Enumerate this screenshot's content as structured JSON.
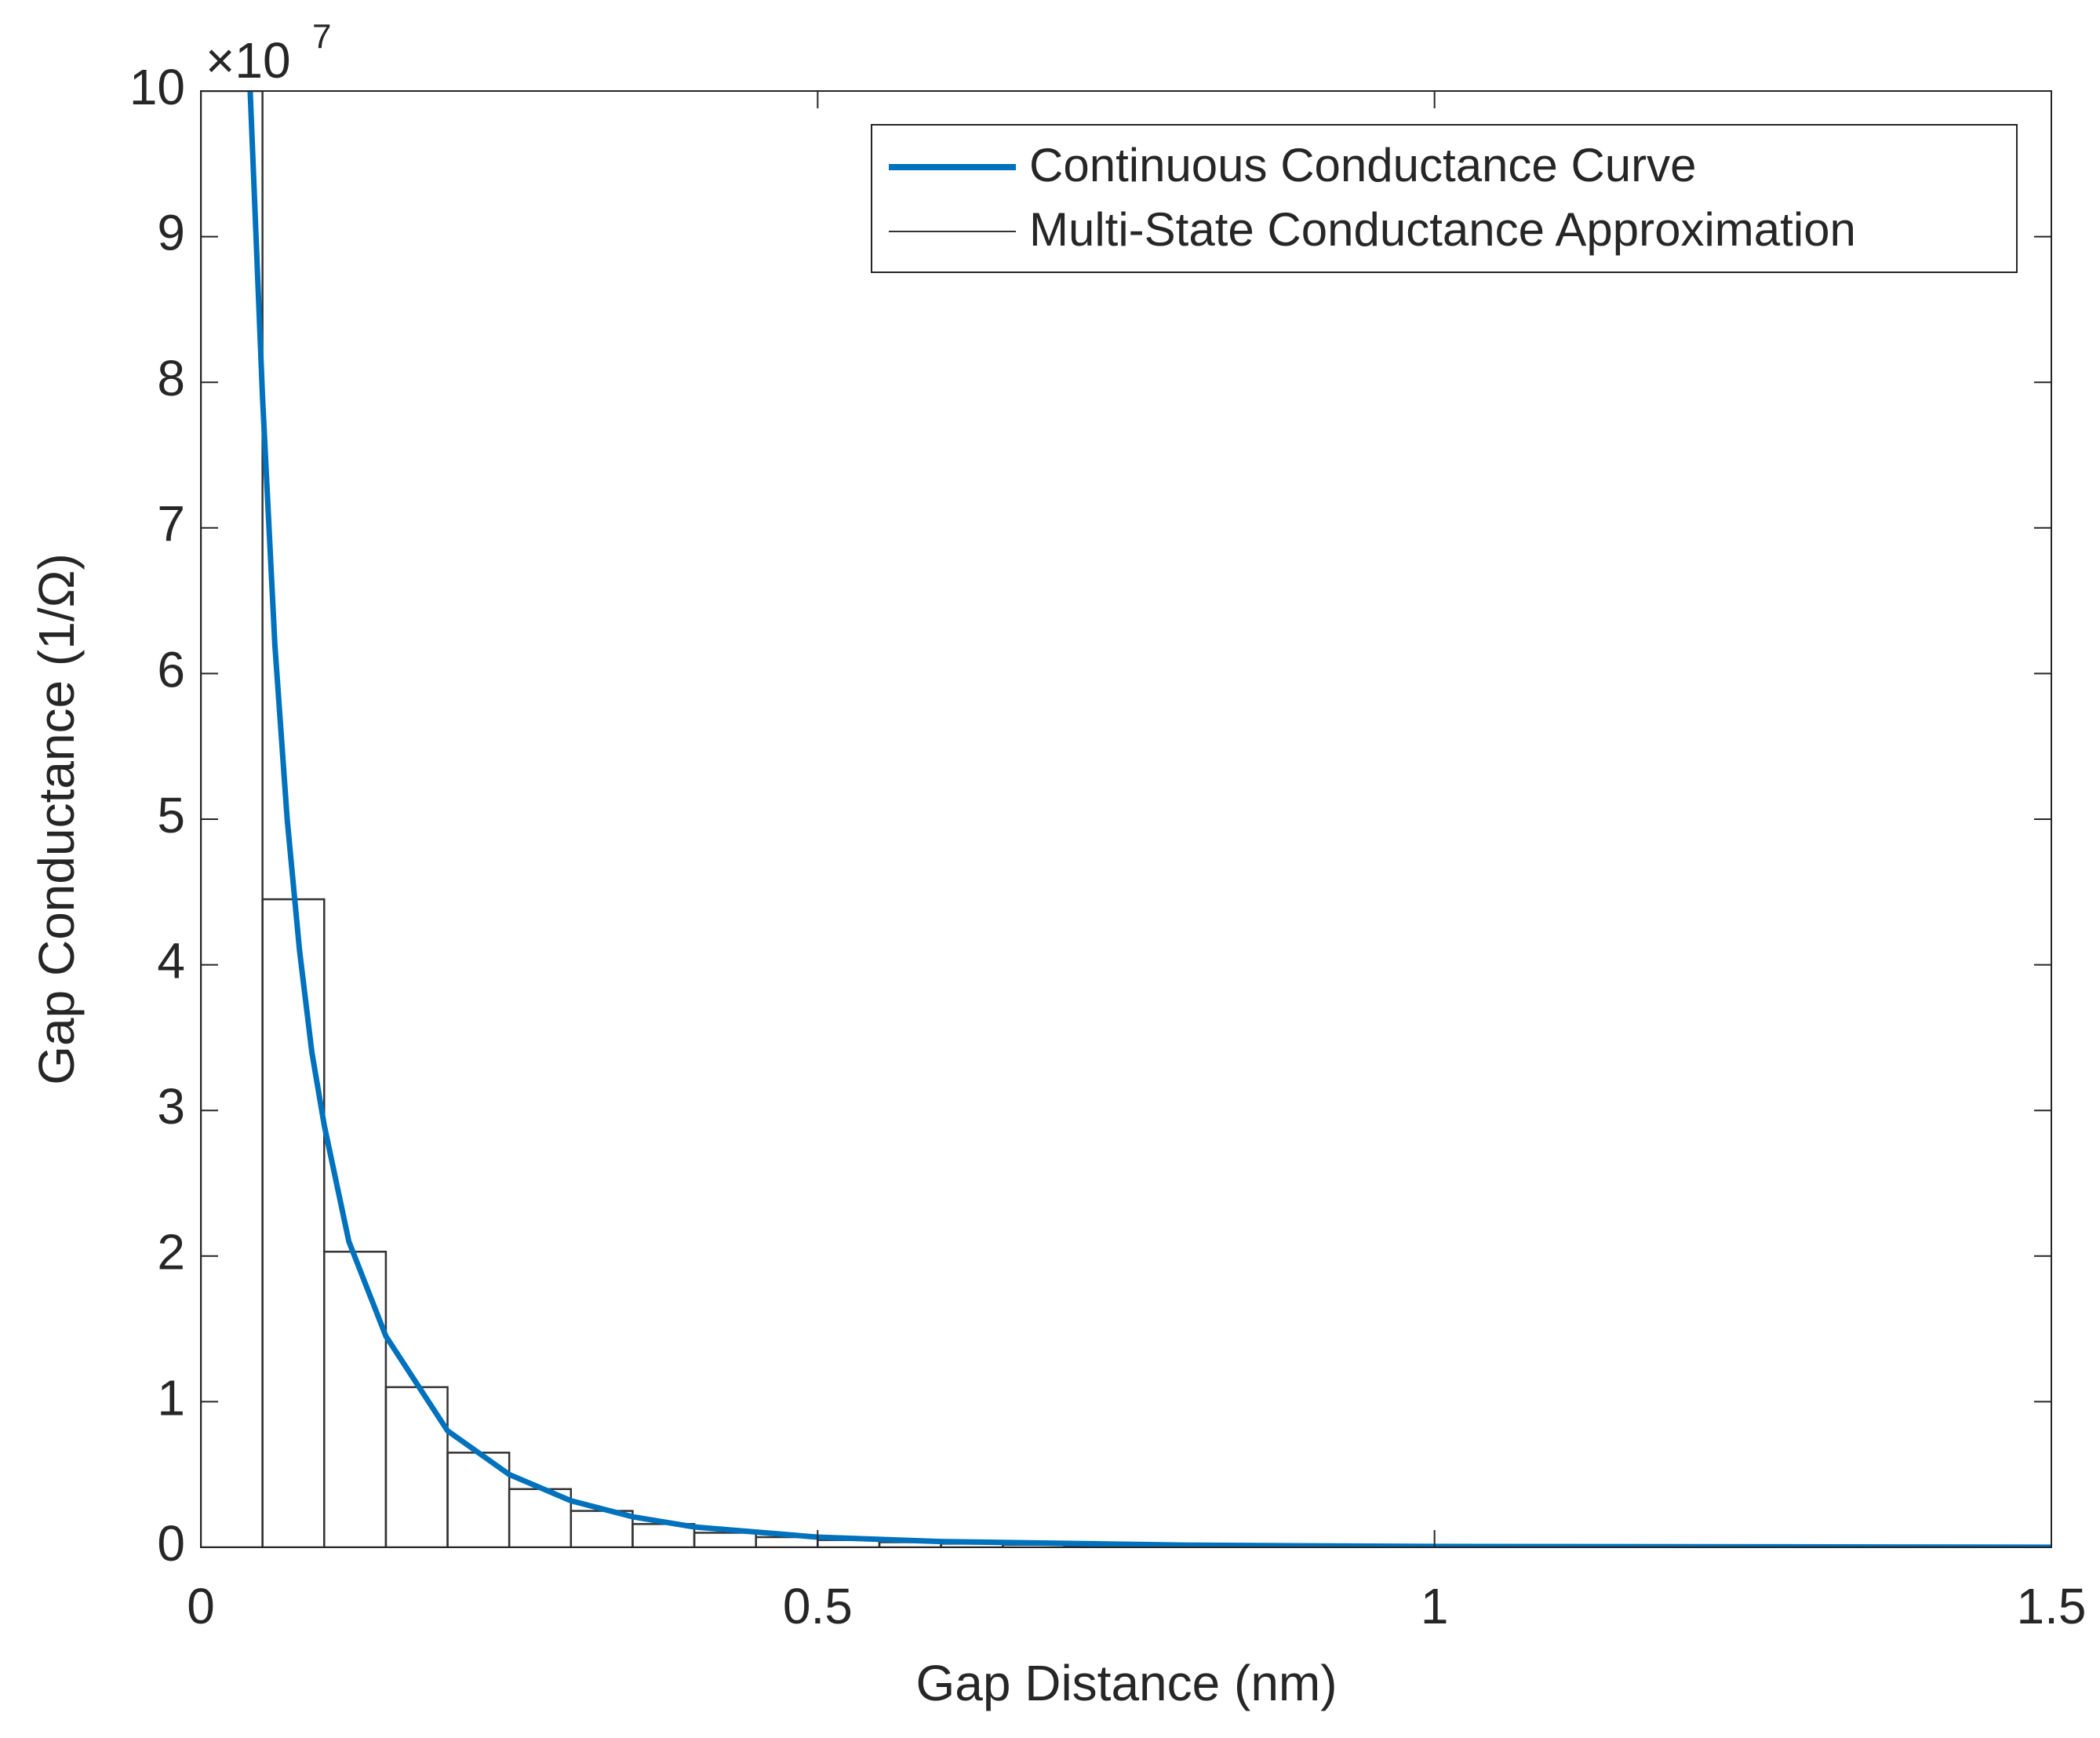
{
  "chart_data": {
    "type": "line",
    "x_label": "Gap Distance (nm)",
    "y_label": "Gap Conductance (1/Ω)",
    "y_multiplier": "×10",
    "y_multiplier_exponent": "7",
    "xlim": [
      0,
      1.5
    ],
    "ylim": [
      0,
      10
    ],
    "xticks": [
      0,
      0.5,
      1,
      1.5
    ],
    "yticks": [
      0,
      1,
      2,
      3,
      4,
      5,
      6,
      7,
      8,
      9,
      10
    ],
    "legend": "upper right",
    "series": [
      {
        "name": "Continuous Conductance Curve",
        "color": "#0072bd",
        "x": [
          0.04,
          0.05,
          0.06,
          0.07,
          0.08,
          0.09,
          0.1,
          0.12,
          0.15,
          0.2,
          0.25,
          0.3,
          0.35,
          0.4,
          0.5,
          0.6,
          0.8,
          1.0,
          1.5
        ],
        "values": [
          10,
          7.9,
          6.2,
          5,
          4.1,
          3.4,
          2.9,
          2.1,
          1.45,
          0.8,
          0.5,
          0.32,
          0.21,
          0.14,
          0.07,
          0.04,
          0.015,
          0.006,
          0.001
        ]
      }
    ],
    "histogram": {
      "name": "Multi-State Conductance Approximation",
      "color": "#333333",
      "bins": [
        0,
        0.05,
        0.1,
        0.15,
        0.2,
        0.25,
        0.3,
        0.35,
        0.4,
        0.45,
        0.5,
        0.55,
        0.6,
        0.65,
        0.7,
        0.75,
        0.8,
        0.85,
        0.9,
        0.95,
        1,
        1.05,
        1.1,
        1.15,
        1.2,
        1.25,
        1.3,
        1.35,
        1.4,
        1.45,
        1.5
      ],
      "counts": [
        10,
        4.45,
        2.03,
        1.1,
        0.65,
        0.4,
        0.25,
        0.16,
        0.1,
        0.07,
        0.05,
        0.035,
        0.025,
        0.018,
        0.013,
        0.01,
        0.008,
        0.006,
        0.005,
        0.004,
        0.003,
        0.003,
        0.002,
        0.002,
        0.002,
        0.001,
        0.001,
        0.001,
        0.001,
        0.001
      ]
    }
  }
}
